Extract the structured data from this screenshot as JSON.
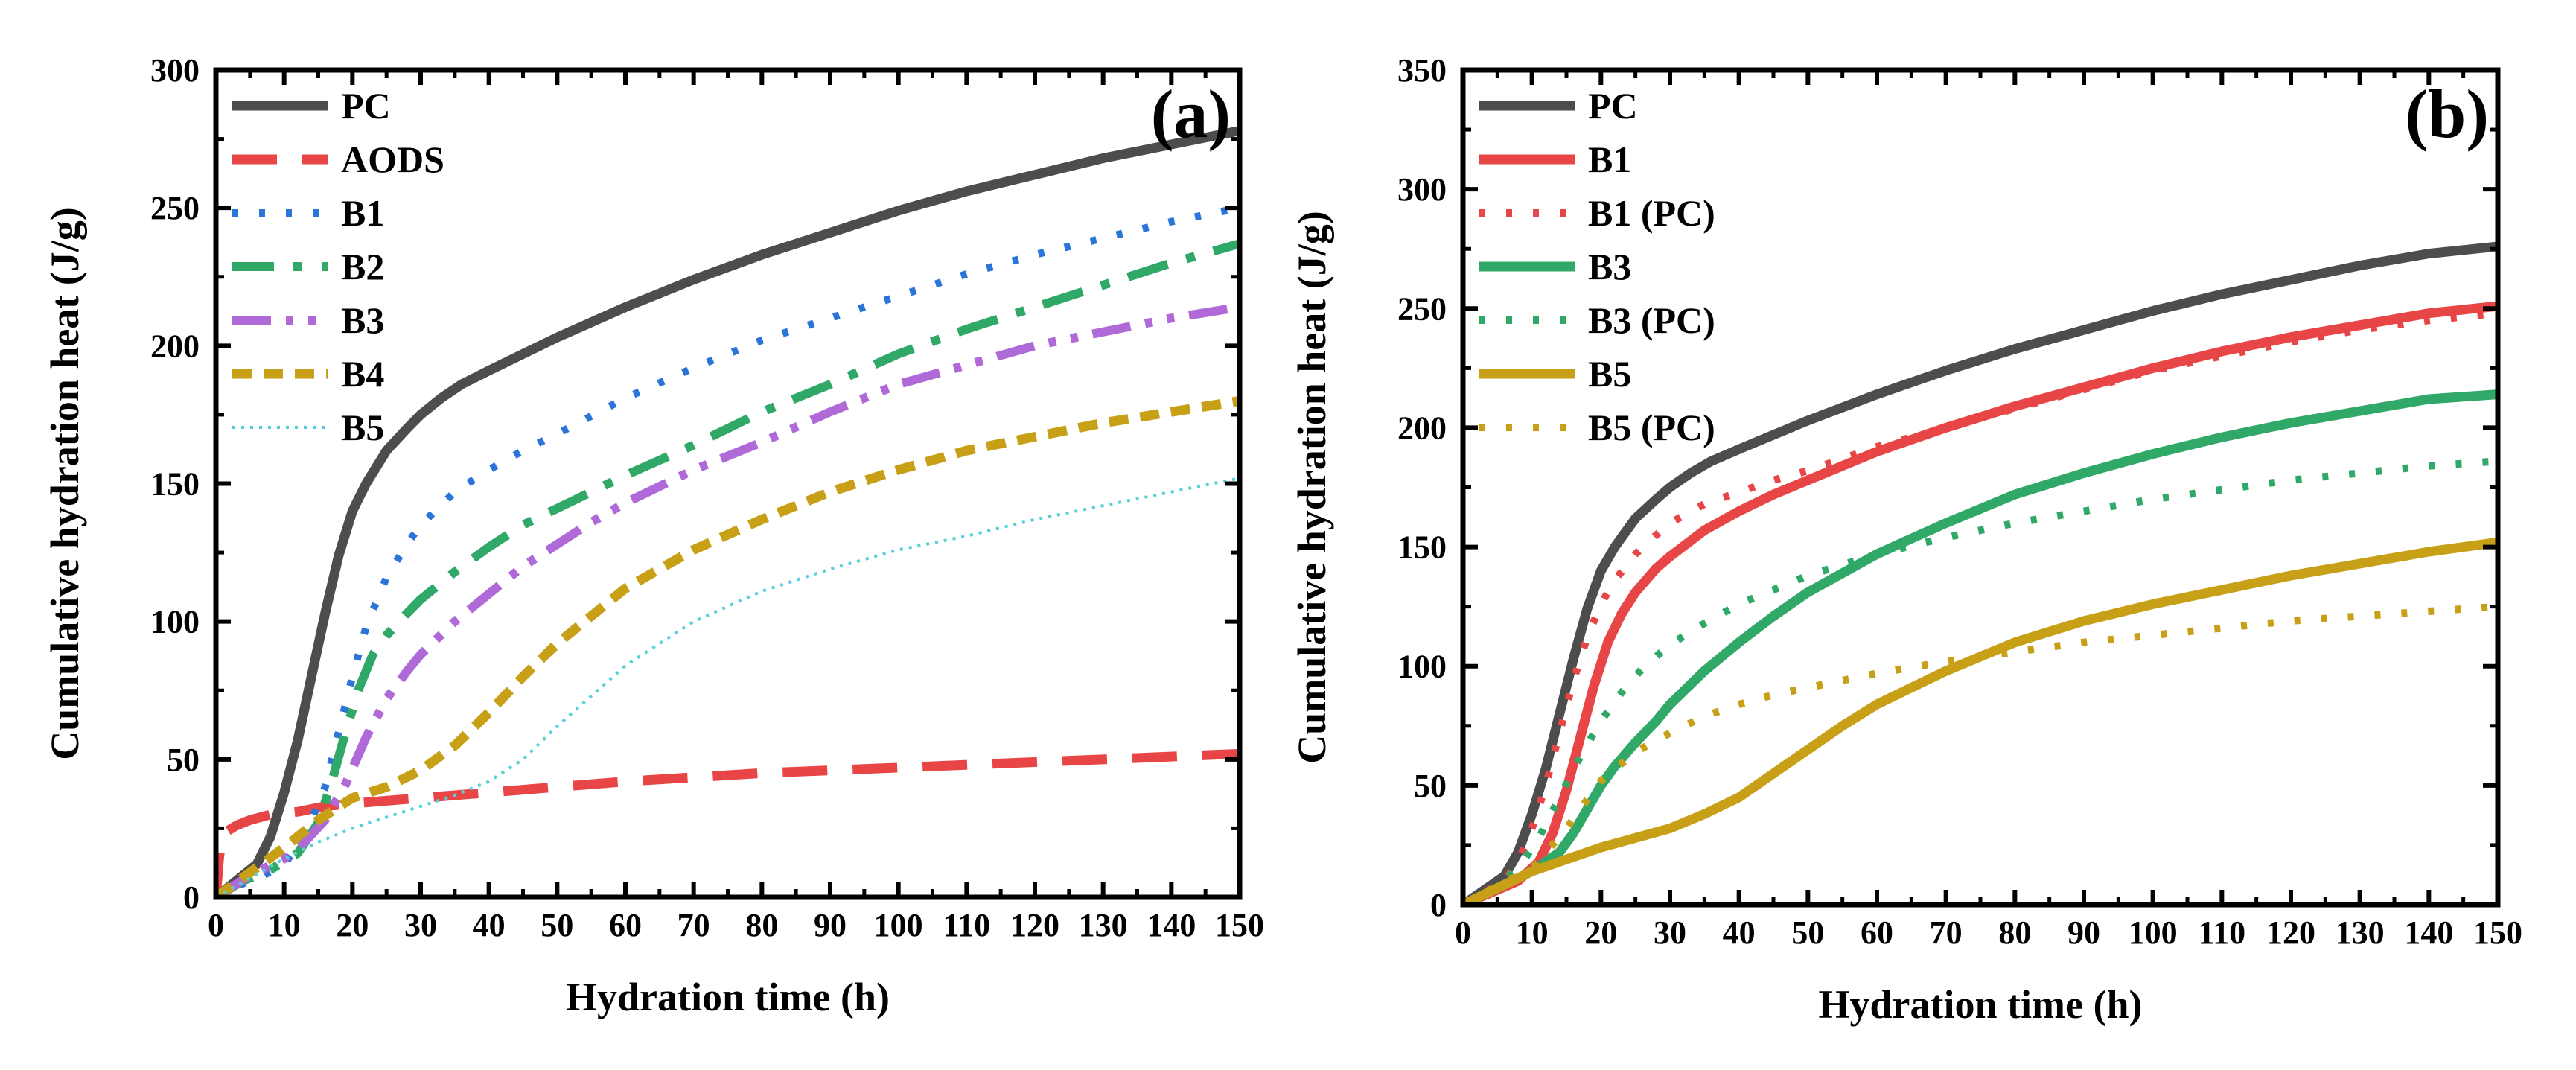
{
  "chart_data": [
    {
      "type": "line",
      "panel_label": "(a)",
      "xlabel": "Hydration time (h)",
      "ylabel": "Cumulative hydration heat (J/g)",
      "xlim": [
        0,
        150
      ],
      "ylim": [
        0,
        300
      ],
      "x_ticks": [
        0,
        10,
        20,
        30,
        40,
        50,
        60,
        70,
        80,
        90,
        100,
        110,
        120,
        130,
        140,
        150
      ],
      "y_ticks": [
        0,
        50,
        100,
        150,
        200,
        250,
        300
      ],
      "grid": false,
      "legend_position": "top-left",
      "series": [
        {
          "name": "PC",
          "color": "#4d4d4d",
          "style": "solid",
          "x": [
            0,
            3,
            6,
            8,
            10,
            12,
            14,
            16,
            18,
            20,
            22,
            25,
            28,
            30,
            33,
            36,
            40,
            45,
            50,
            60,
            70,
            80,
            90,
            100,
            110,
            120,
            130,
            140,
            150
          ],
          "y": [
            0,
            6,
            12,
            22,
            38,
            57,
            80,
            103,
            124,
            140,
            150,
            162,
            170,
            175,
            181,
            186,
            191,
            197,
            203,
            214,
            224,
            233,
            241,
            249,
            256,
            262,
            268,
            273,
            278
          ]
        },
        {
          "name": "AODS",
          "color": "#e84646",
          "style": "dash",
          "x": [
            0,
            0.5,
            1,
            3,
            5,
            8,
            12,
            16,
            20,
            25,
            30,
            40,
            50,
            60,
            80,
            100,
            120,
            150
          ],
          "y": [
            0,
            15,
            23,
            26,
            28,
            30,
            31,
            33,
            34,
            35,
            36,
            38,
            40,
            42,
            45,
            47,
            49,
            52
          ]
        },
        {
          "name": "B1",
          "color": "#2b74d8",
          "style": "dot",
          "x": [
            0,
            4,
            7,
            10,
            13,
            16,
            18,
            20,
            22,
            25,
            28,
            30,
            35,
            40,
            45,
            50,
            60,
            70,
            80,
            90,
            100,
            110,
            120,
            130,
            140,
            150
          ],
          "y": [
            0,
            5,
            8,
            12,
            22,
            40,
            60,
            80,
            98,
            116,
            128,
            135,
            147,
            155,
            162,
            168,
            181,
            192,
            202,
            210,
            218,
            226,
            233,
            239,
            245,
            250
          ]
        },
        {
          "name": "B2",
          "color": "#30a868",
          "style": "dashdot",
          "x": [
            0,
            4,
            8,
            12,
            15,
            17,
            19,
            21,
            23,
            25,
            28,
            30,
            35,
            40,
            45,
            50,
            60,
            70,
            80,
            90,
            100,
            110,
            120,
            130,
            140,
            150
          ],
          "y": [
            0,
            6,
            10,
            16,
            27,
            42,
            60,
            76,
            88,
            95,
            103,
            108,
            118,
            127,
            135,
            141,
            153,
            164,
            176,
            186,
            197,
            206,
            214,
            222,
            230,
            237
          ]
        },
        {
          "name": "B3",
          "color": "#b06ad8",
          "style": "dashdotdot",
          "x": [
            0,
            5,
            10,
            13,
            16,
            19,
            22,
            25,
            28,
            30,
            35,
            40,
            45,
            50,
            55,
            60,
            70,
            80,
            90,
            100,
            110,
            120,
            130,
            140,
            150
          ],
          "y": [
            0,
            8,
            14,
            20,
            28,
            41,
            58,
            72,
            82,
            88,
            100,
            110,
            120,
            128,
            136,
            143,
            155,
            165,
            176,
            186,
            193,
            200,
            205,
            210,
            214
          ]
        },
        {
          "name": "B4",
          "color": "#c8a018",
          "style": "shortdash",
          "x": [
            0,
            5,
            10,
            15,
            20,
            25,
            30,
            35,
            40,
            45,
            50,
            55,
            60,
            65,
            70,
            80,
            90,
            100,
            110,
            120,
            130,
            140,
            150
          ],
          "y": [
            0,
            9,
            18,
            28,
            36,
            40,
            46,
            55,
            67,
            80,
            92,
            102,
            112,
            119,
            126,
            137,
            147,
            155,
            162,
            167,
            172,
            176,
            180
          ]
        },
        {
          "name": "B5",
          "color": "#55d0d8",
          "style": "thindot",
          "x": [
            0,
            5,
            10,
            15,
            20,
            25,
            30,
            35,
            40,
            45,
            50,
            55,
            60,
            65,
            70,
            80,
            90,
            100,
            110,
            120,
            130,
            140,
            150
          ],
          "y": [
            0,
            7,
            14,
            20,
            25,
            29,
            33,
            37,
            42,
            50,
            62,
            73,
            84,
            92,
            100,
            111,
            119,
            126,
            131,
            137,
            142,
            147,
            152
          ]
        }
      ]
    },
    {
      "type": "line",
      "panel_label": "(b)",
      "xlabel": "Hydration time (h)",
      "ylabel": "Cumulative hydration heat (J/g)",
      "xlim": [
        0,
        150
      ],
      "ylim": [
        0,
        350
      ],
      "x_ticks": [
        0,
        10,
        20,
        30,
        40,
        50,
        60,
        70,
        80,
        90,
        100,
        110,
        120,
        130,
        140,
        150
      ],
      "y_ticks": [
        0,
        50,
        100,
        150,
        200,
        250,
        300,
        350
      ],
      "grid": false,
      "legend_position": "top-left",
      "series": [
        {
          "name": "PC",
          "color": "#4d4d4d",
          "style": "solid",
          "x": [
            0,
            3,
            6,
            8,
            10,
            12,
            14,
            16,
            18,
            20,
            22,
            25,
            28,
            30,
            33,
            36,
            40,
            45,
            50,
            60,
            70,
            80,
            90,
            100,
            110,
            120,
            130,
            140,
            150
          ],
          "y": [
            0,
            6,
            12,
            22,
            38,
            57,
            80,
            103,
            124,
            140,
            150,
            162,
            170,
            175,
            181,
            186,
            191,
            197,
            203,
            214,
            224,
            233,
            241,
            249,
            256,
            262,
            268,
            273,
            276
          ]
        },
        {
          "name": "B1",
          "color": "#e84646",
          "style": "solid",
          "x": [
            0,
            4,
            8,
            11,
            13,
            15,
            17,
            19,
            21,
            23,
            25,
            28,
            30,
            35,
            40,
            45,
            50,
            60,
            70,
            80,
            90,
            100,
            110,
            120,
            130,
            140,
            150
          ],
          "y": [
            0,
            5,
            10,
            18,
            30,
            48,
            70,
            92,
            110,
            122,
            131,
            141,
            146,
            157,
            165,
            172,
            178,
            190,
            200,
            209,
            217,
            225,
            232,
            238,
            243,
            248,
            251
          ]
        },
        {
          "name": "B1 (PC)",
          "color": "#e84646",
          "style": "dot",
          "x": [
            0,
            3,
            6,
            8,
            10,
            12,
            14,
            16,
            18,
            20,
            22,
            25,
            28,
            30,
            35,
            40,
            45,
            50,
            60,
            70,
            80,
            90,
            100,
            110,
            120,
            130,
            140,
            150
          ],
          "y": [
            0,
            5,
            10,
            18,
            32,
            50,
            72,
            94,
            112,
            126,
            136,
            147,
            155,
            160,
            168,
            173,
            178,
            182,
            192,
            200,
            208,
            216,
            224,
            230,
            236,
            241,
            245,
            248
          ]
        },
        {
          "name": "B3",
          "color": "#30a868",
          "style": "solid",
          "x": [
            0,
            5,
            10,
            14,
            16,
            18,
            20,
            22,
            25,
            28,
            30,
            35,
            40,
            45,
            50,
            55,
            60,
            70,
            80,
            90,
            100,
            110,
            120,
            130,
            140,
            150
          ],
          "y": [
            0,
            7,
            14,
            22,
            30,
            40,
            50,
            58,
            68,
            77,
            84,
            98,
            110,
            121,
            131,
            139,
            147,
            160,
            172,
            181,
            189,
            196,
            202,
            207,
            212,
            214
          ]
        },
        {
          "name": "B3 (PC)",
          "color": "#30a868",
          "style": "dot",
          "x": [
            0,
            4,
            8,
            11,
            14,
            17,
            20,
            23,
            26,
            30,
            35,
            40,
            45,
            50,
            60,
            70,
            80,
            90,
            100,
            110,
            120,
            130,
            140,
            150
          ],
          "y": [
            0,
            6,
            15,
            28,
            45,
            62,
            77,
            89,
            99,
            109,
            118,
            126,
            132,
            138,
            147,
            154,
            160,
            165,
            170,
            174,
            178,
            181,
            184,
            186
          ]
        },
        {
          "name": "B5",
          "color": "#c8a018",
          "style": "solid",
          "x": [
            0,
            5,
            10,
            15,
            20,
            25,
            30,
            35,
            40,
            45,
            50,
            55,
            60,
            65,
            70,
            80,
            90,
            100,
            110,
            120,
            130,
            140,
            150
          ],
          "y": [
            0,
            7,
            14,
            19,
            24,
            28,
            32,
            38,
            45,
            55,
            65,
            75,
            84,
            91,
            98,
            110,
            119,
            126,
            132,
            138,
            143,
            148,
            152
          ]
        },
        {
          "name": "B5 (PC)",
          "color": "#c8a018",
          "style": "dot",
          "x": [
            0,
            5,
            10,
            15,
            20,
            25,
            30,
            35,
            40,
            45,
            50,
            60,
            70,
            80,
            90,
            100,
            110,
            120,
            130,
            140,
            150
          ],
          "y": [
            0,
            8,
            15,
            32,
            52,
            64,
            72,
            79,
            84,
            88,
            91,
            97,
            102,
            106,
            110,
            113,
            116,
            119,
            121,
            123,
            125
          ]
        }
      ]
    }
  ]
}
